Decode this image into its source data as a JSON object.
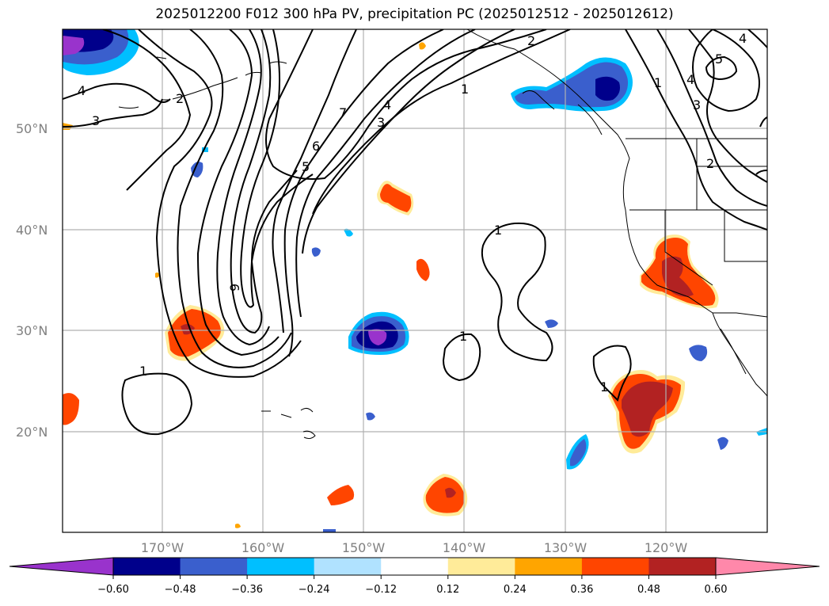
{
  "title": "2025012200 F012 300 hPa PV, precipitation PC (2025012512 - 2025012612)",
  "map": {
    "lat_labels": [
      "50°N",
      "40°N",
      "30°N",
      "20°N"
    ],
    "lon_labels": [
      "170°W",
      "160°W",
      "150°W",
      "140°W",
      "130°W",
      "120°W"
    ],
    "pv_contour_labels": [
      "4",
      "3",
      "7",
      "6",
      "5",
      "4",
      "3",
      "2",
      "1",
      "2",
      "1",
      "4",
      "5",
      "4",
      "3",
      "2",
      "9",
      "1",
      "1",
      "1",
      "1"
    ]
  },
  "colorbar": {
    "tick_labels": [
      "−0.60",
      "−0.48",
      "−0.36",
      "−0.24",
      "−0.12",
      "0.12",
      "0.24",
      "0.36",
      "0.48",
      "0.60"
    ],
    "colors": [
      "#9933cc",
      "#00008b",
      "#3a5fcd",
      "#00bfff",
      "#b0e2ff",
      "#ffffff",
      "#ffeb99",
      "#ffa500",
      "#ff4500",
      "#b22222",
      "#ff88aa"
    ]
  }
}
